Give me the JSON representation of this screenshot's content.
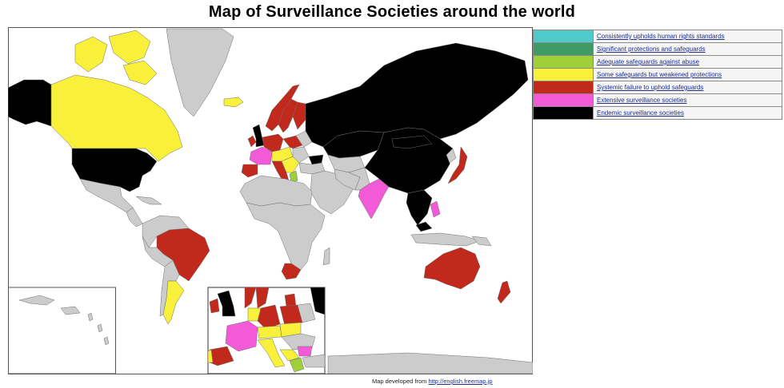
{
  "title": "Map of Surveillance Societies around the world",
  "colors": {
    "ocean": "#ffffff",
    "land": "#cccccc",
    "border": "#6f6f6f",
    "upholds": "#4fc9c9",
    "significant": "#3f9a63",
    "adequate": "#9fd03a",
    "some": "#f8f03a",
    "systemic": "#c0291b",
    "extensive": "#f25ad8",
    "endemic": "#000000"
  },
  "legend": [
    {
      "label": "Consistently upholds human rights standards",
      "color": "#4fc9c9"
    },
    {
      "label": "Significant protections and safeguards",
      "color": "#3f9a63"
    },
    {
      "label": "Adequate safeguards against abuse",
      "color": "#9fd03a"
    },
    {
      "label": "Some safeguards but weakened protections",
      "color": "#f8f03a"
    },
    {
      "label": "Systemic failure to uphold safeguards",
      "color": "#c0291b"
    },
    {
      "label": "Extensive surveillance societies",
      "color": "#f25ad8"
    },
    {
      "label": "Endemic surveillance societies",
      "color": "#000000"
    }
  ],
  "credit": {
    "prefix": "Map developed from ",
    "link": "http://english.freemap.jp"
  }
}
